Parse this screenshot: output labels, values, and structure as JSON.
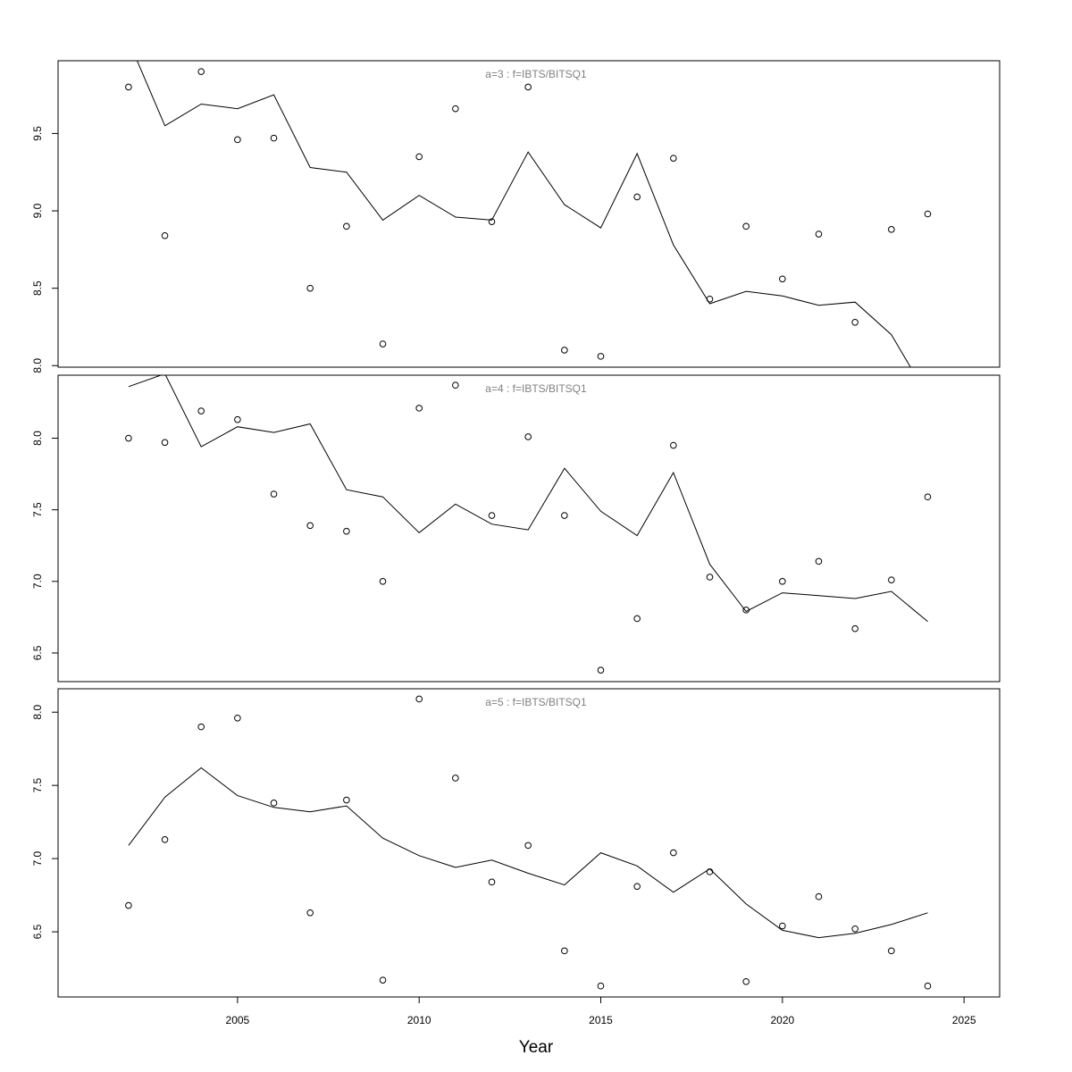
{
  "chart_data": {
    "type": "line",
    "xlabel": "Year",
    "xlim": [
      2000.06,
      2025.98
    ],
    "xticks": [
      2005,
      2010,
      2015,
      2020,
      2025
    ],
    "x": [
      2002,
      2003,
      2004,
      2005,
      2006,
      2007,
      2008,
      2009,
      2010,
      2011,
      2012,
      2013,
      2014,
      2015,
      2016,
      2017,
      2018,
      2019,
      2020,
      2021,
      2022,
      2023,
      2024
    ],
    "grid": false,
    "panels": [
      {
        "title": "a=3  :  f=IBTS/BITSQ1",
        "ylim": [
          7.99,
          9.97
        ],
        "yticks": [
          "8.0",
          "8.5",
          "9.0",
          "9.5"
        ],
        "points": [
          9.8,
          8.84,
          9.9,
          9.46,
          9.47,
          8.5,
          8.9,
          8.14,
          9.35,
          9.66,
          8.93,
          9.8,
          8.1,
          8.06,
          9.09,
          9.34,
          8.43,
          8.9,
          8.56,
          8.85,
          8.28,
          8.88,
          8.98
        ],
        "line": [
          10.1,
          9.55,
          9.69,
          9.66,
          9.75,
          9.28,
          9.25,
          8.94,
          9.1,
          8.96,
          8.94,
          9.38,
          9.04,
          8.89,
          9.37,
          8.78,
          8.4,
          8.48,
          8.45,
          8.39,
          8.41,
          8.2,
          7.8
        ]
      },
      {
        "title": "a=4  :  f=IBTS/BITSQ1",
        "ylim": [
          6.3,
          8.44
        ],
        "yticks": [
          "6.5",
          "7.0",
          "7.5",
          "8.0"
        ],
        "points": [
          8.0,
          7.97,
          8.19,
          8.13,
          7.61,
          7.39,
          7.35,
          7.0,
          8.21,
          8.37,
          7.46,
          8.01,
          7.46,
          6.38,
          6.74,
          7.95,
          7.03,
          6.8,
          7.0,
          7.14,
          6.67,
          7.01,
          7.59
        ],
        "line": [
          8.36,
          8.45,
          7.94,
          8.08,
          8.04,
          8.1,
          7.64,
          7.59,
          7.34,
          7.54,
          7.4,
          7.36,
          7.79,
          7.49,
          7.32,
          7.76,
          7.12,
          6.79,
          6.92,
          6.9,
          6.88,
          6.93,
          6.72
        ]
      },
      {
        "title": "a=5  :  f=IBTS/BITSQ1",
        "ylim": [
          6.055,
          8.16
        ],
        "yticks": [
          "6.5",
          "7.0",
          "7.5",
          "8.0"
        ],
        "points": [
          6.68,
          7.13,
          7.9,
          7.96,
          7.38,
          6.63,
          7.4,
          6.17,
          8.09,
          7.55,
          6.84,
          7.09,
          6.37,
          6.13,
          6.81,
          7.04,
          6.91,
          6.16,
          6.54,
          6.74,
          6.52,
          6.37,
          6.13
        ],
        "line": [
          7.09,
          7.42,
          7.62,
          7.43,
          7.35,
          7.32,
          7.36,
          7.14,
          7.02,
          6.94,
          6.99,
          6.9,
          6.82,
          7.04,
          6.95,
          6.77,
          6.93,
          6.69,
          6.51,
          6.46,
          6.49,
          6.55,
          6.63
        ]
      }
    ],
    "colors": {
      "marks": "#000000",
      "panel_title": "#808080"
    }
  }
}
